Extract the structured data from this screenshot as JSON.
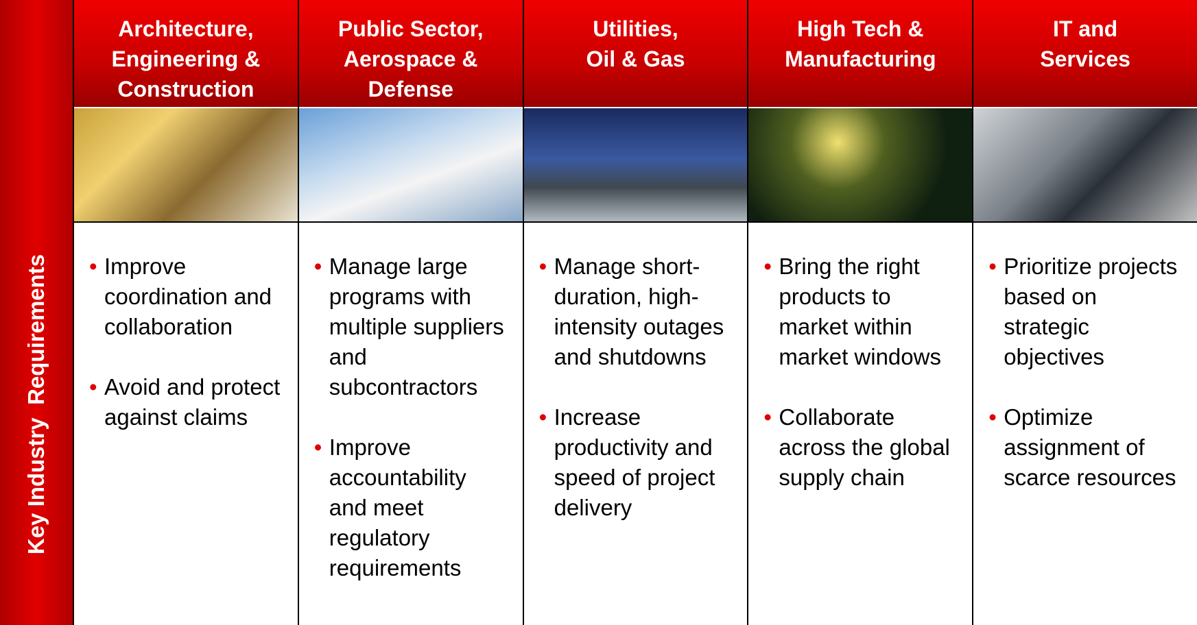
{
  "side_label": "Key Industry  Requirements",
  "columns": [
    {
      "title_lines": [
        "Architecture,",
        "Engineering &",
        "Construction"
      ],
      "bullets": [
        "Improve coordination and collaboration",
        "Avoid and protect against claims"
      ]
    },
    {
      "title_lines": [
        "Public Sector,",
        "Aerospace &",
        "Defense"
      ],
      "bullets": [
        "Manage large programs with multiple suppliers and subcontractors",
        "Improve accountability and meet regulatory requirements"
      ]
    },
    {
      "title_lines": [
        "Utilities,",
        "Oil & Gas"
      ],
      "bullets": [
        "Manage short-duration, high-intensity outages and shutdowns",
        "Increase productivity and speed of project delivery"
      ]
    },
    {
      "title_lines": [
        "High Tech &",
        "Manufacturing"
      ],
      "bullets": [
        "Bring the right products to market within market windows",
        "Collaborate across the global supply chain"
      ]
    },
    {
      "title_lines": [
        "IT and",
        "Services"
      ],
      "bullets": [
        "Prioritize projects based on strategic objectives",
        "Optimize assignment of scarce resources"
      ]
    }
  ]
}
